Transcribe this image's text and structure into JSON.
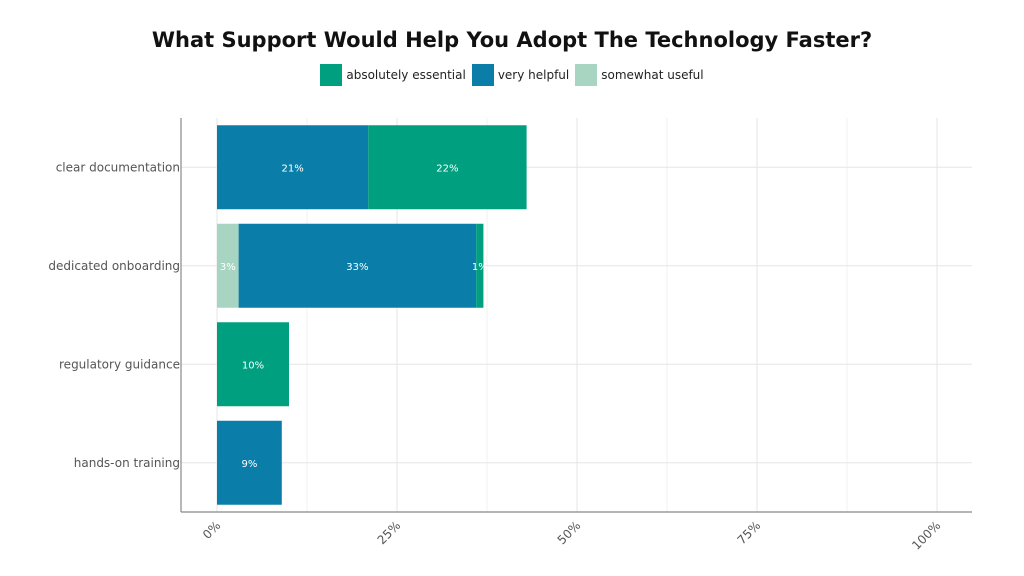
{
  "chart_data": {
    "type": "bar",
    "orientation": "horizontal",
    "stacked": true,
    "title": "What Support Would Help You Adopt The Technology Faster?",
    "xlabel": "",
    "ylabel": "",
    "xlim": [
      0,
      100
    ],
    "x_ticks": [
      0,
      25,
      50,
      75,
      100
    ],
    "x_tick_labels": [
      "0%",
      "25%",
      "50%",
      "75%",
      "100%"
    ],
    "grid": true,
    "legend_position": "top-center",
    "categories": [
      "clear documentation",
      "dedicated onboarding",
      "regulatory guidance",
      "hands-on training"
    ],
    "series": [
      {
        "name": "somewhat useful",
        "color": "#a8d5c2",
        "values": [
          0,
          3,
          0,
          0
        ],
        "labels": [
          "",
          "3%",
          "",
          ""
        ]
      },
      {
        "name": "very helpful",
        "color": "#0a7ea8",
        "values": [
          21,
          33,
          0,
          9
        ],
        "labels": [
          "21%",
          "33%",
          "",
          "9%"
        ]
      },
      {
        "name": "absolutely essential",
        "color": "#009f7f",
        "values": [
          22,
          1,
          10,
          0
        ],
        "labels": [
          "22%",
          "1%",
          "10%",
          ""
        ]
      }
    ],
    "legend_order": [
      "absolutely essential",
      "very helpful",
      "somewhat useful"
    ]
  }
}
